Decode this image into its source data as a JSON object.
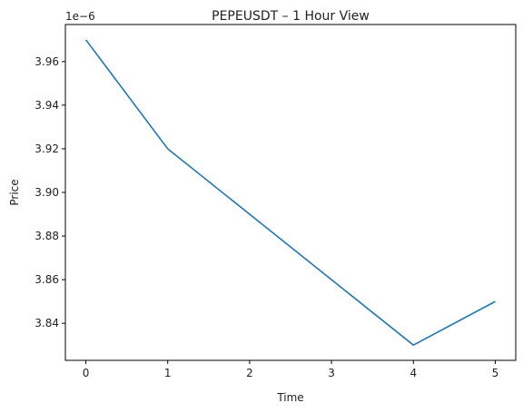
{
  "chart_data": {
    "type": "line",
    "title": "PEPEUSDT – 1 Hour View",
    "xlabel": "Time",
    "ylabel": "Price",
    "offset_label": "1e−6",
    "x": [
      0,
      1,
      2,
      3,
      4,
      5
    ],
    "series": [
      {
        "values": [
          3.97,
          3.92,
          3.89,
          3.86,
          3.83,
          3.85
        ],
        "color": "#1f77b4"
      }
    ],
    "xticks": [
      "0",
      "1",
      "2",
      "3",
      "4",
      "5"
    ],
    "yticks": [
      3.84,
      3.86,
      3.88,
      3.9,
      3.92,
      3.94,
      3.96
    ],
    "ytick_labels": [
      "3.84",
      "3.86",
      "3.88",
      "3.90",
      "3.92",
      "3.94",
      "3.96"
    ],
    "xlim": [
      -0.25,
      5.25
    ],
    "ylim": [
      3.823,
      3.977
    ],
    "grid": false
  }
}
